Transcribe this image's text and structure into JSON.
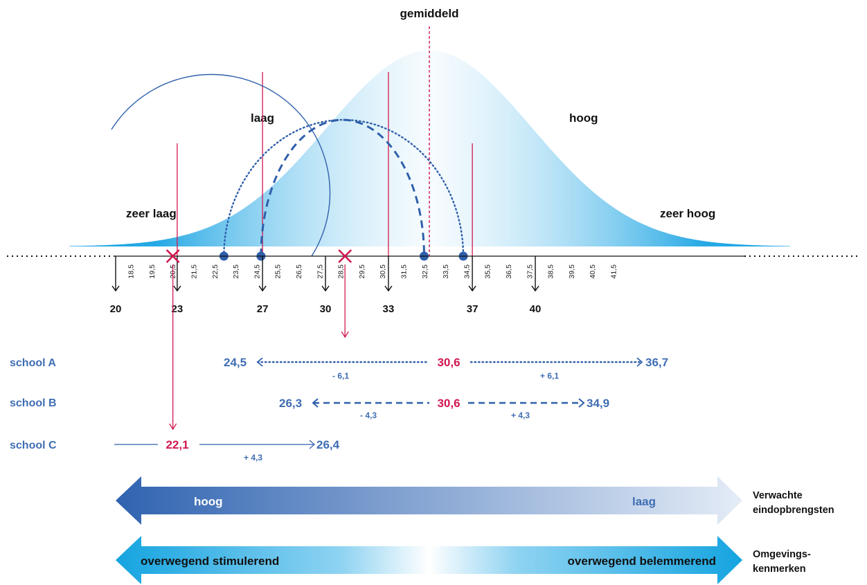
{
  "diagram": {
    "mean_label": "gemiddeld",
    "regions": {
      "zeer_laag": "zeer laag",
      "laag": "laag",
      "hoog": "hoog",
      "zeer_hoog": "zeer hoog"
    },
    "axis": {
      "min": 17.5,
      "max": 42.5,
      "minor_ticks": [
        "18,5",
        "19,5",
        "20,5",
        "21,5",
        "22,5",
        "23,5",
        "24,5",
        "25,5",
        "26,5",
        "27,5",
        "28,5",
        "29,5",
        "30,5",
        "31,5",
        "32,5",
        "33,5",
        "34,5",
        "35,5",
        "36,5",
        "37,5",
        "38,5",
        "39,5",
        "40,5",
        "41,5"
      ],
      "major_ticks": [
        {
          "value": 20,
          "label": "20"
        },
        {
          "value": 23,
          "label": "23"
        },
        {
          "value": 27,
          "label": "27"
        },
        {
          "value": 30,
          "label": "30"
        },
        {
          "value": 33,
          "label": "33"
        },
        {
          "value": 37,
          "label": "37"
        },
        {
          "value": 40,
          "label": "40"
        }
      ],
      "boundaries": [
        23,
        27,
        33,
        37
      ]
    },
    "schools": [
      {
        "name": "school A",
        "score": "30,6",
        "score_value": 30.6,
        "low": "24,5",
        "low_value": 24.5,
        "high": "36,7",
        "high_value": 36.7,
        "minus": "- 6,1",
        "plus": "+ 6,1",
        "style": "dotted"
      },
      {
        "name": "school B",
        "score": "30,6",
        "score_value": 30.6,
        "low": "26,3",
        "low_value": 26.3,
        "high": "34,9",
        "high_value": 34.9,
        "minus": "- 4,3",
        "plus": "+ 4,3",
        "style": "dashed"
      },
      {
        "name": "school C",
        "score": "22,1",
        "score_value": 22.1,
        "high": "26,4",
        "high_value": 26.4,
        "plus": "+ 4,3",
        "style": "solid"
      }
    ],
    "arrows": [
      {
        "left_label": "hoog",
        "right_label": "laag",
        "side_label_1": "Verwachte",
        "side_label_2": "eindopbrengsten"
      },
      {
        "left_label": "overwegend stimulerend",
        "right_label": "overwegend belemmerend",
        "side_label_1": "Omgevings-",
        "side_label_2": "kenmerken"
      }
    ],
    "colors": {
      "accent_red": "#d1174f",
      "blue": "#3f6db3",
      "cyan": "#14a4e0",
      "navy": "#2f5faa"
    }
  }
}
